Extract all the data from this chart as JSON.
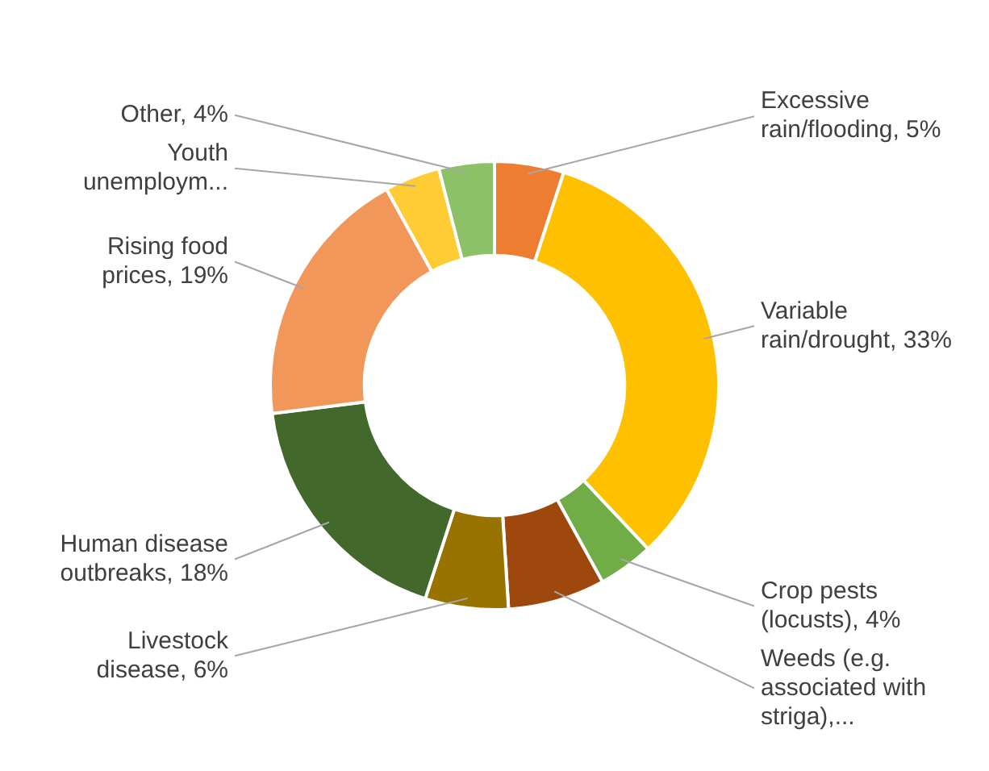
{
  "chart_data": {
    "type": "donut",
    "categories": [
      "Excessive rain/flooding",
      "Variable rain/drought",
      "Crop pests (locusts)",
      "Weeds (e.g. associated with striga),...",
      "Livestock disease",
      "Human disease outbreaks",
      "Rising food prices",
      "Youth unemploym...",
      "Other"
    ],
    "values": [
      5,
      33,
      4,
      7,
      6,
      18,
      19,
      4,
      4
    ],
    "value_labels": [
      "5%",
      "33%",
      "4%",
      null,
      "6%",
      "18%",
      "19%",
      null,
      "4%"
    ],
    "colors": [
      "#ed7d31",
      "#ffc000",
      "#70ad47",
      "#9e480e",
      "#997300",
      "#43682b",
      "#f1975a",
      "#ffcd33",
      "#8cc168"
    ],
    "legend": false
  }
}
